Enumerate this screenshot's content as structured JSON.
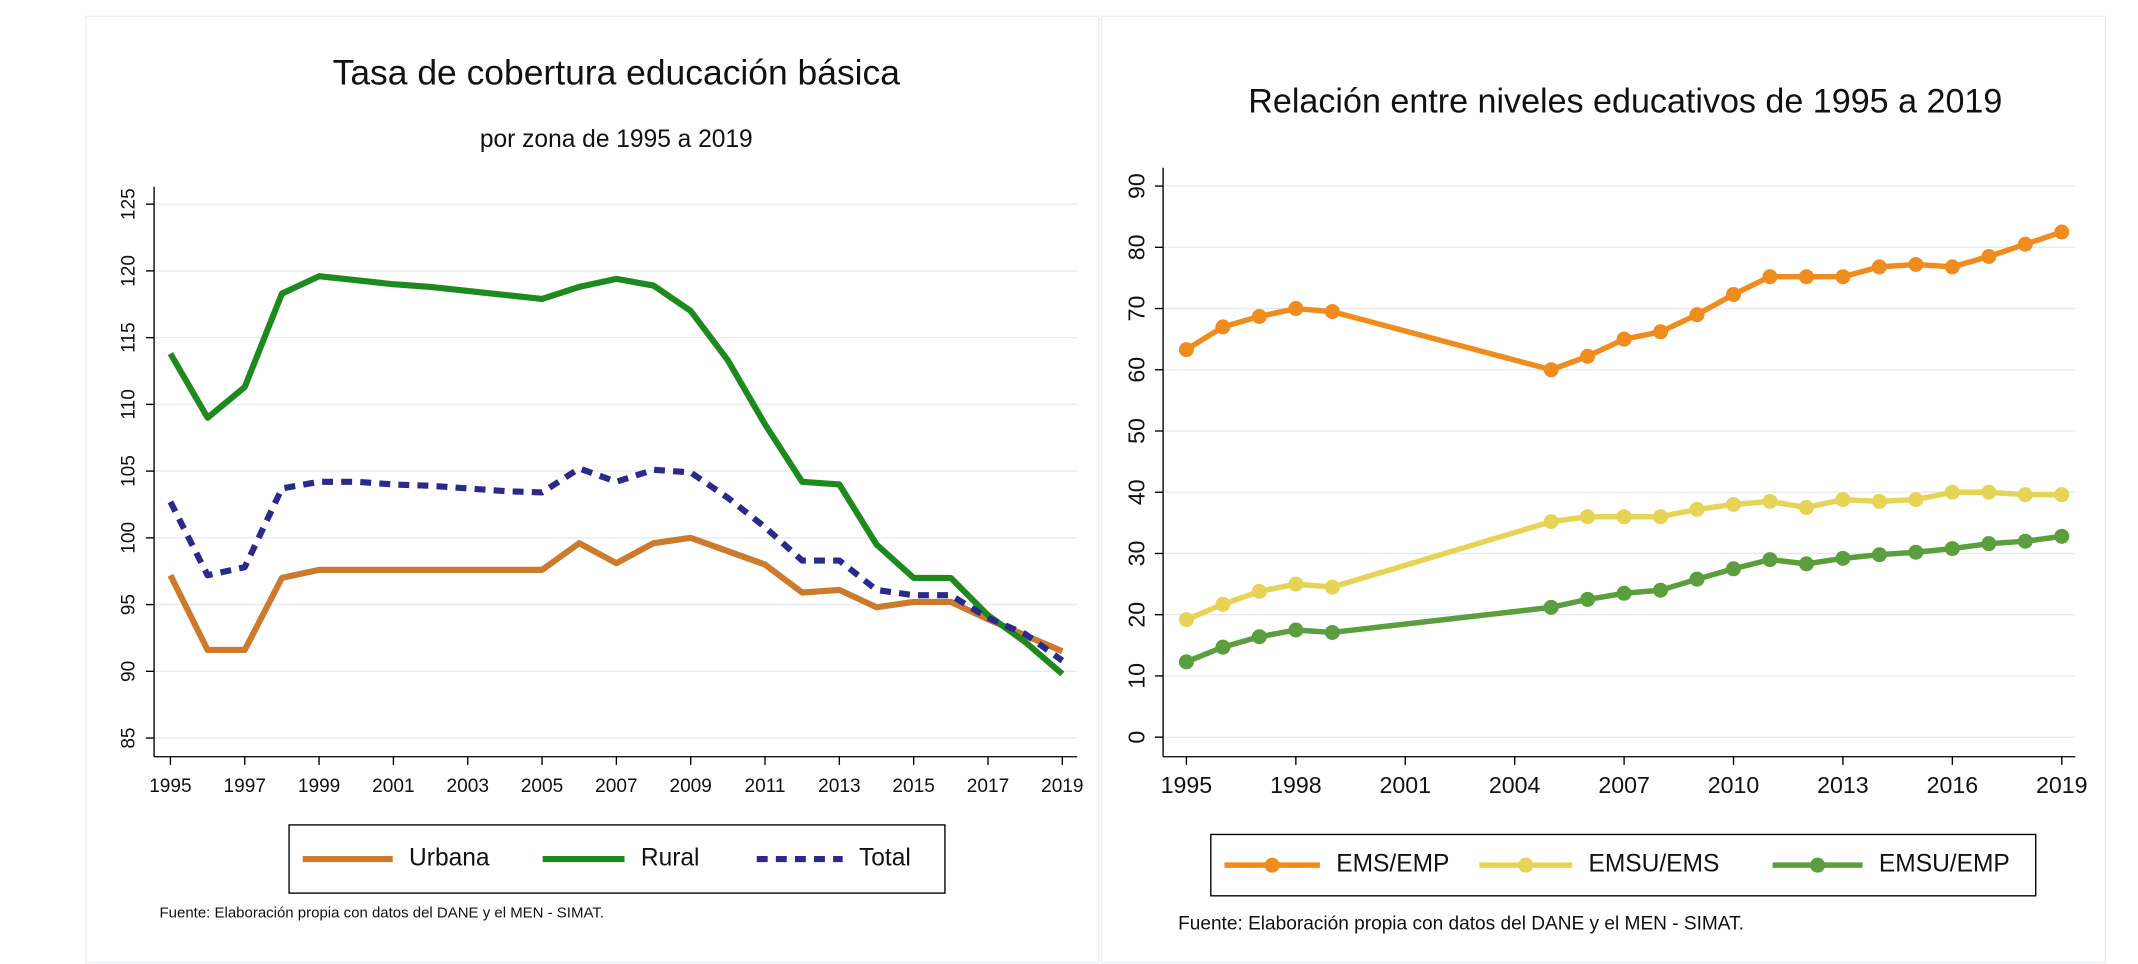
{
  "chart_data": [
    {
      "type": "line",
      "title": "Tasa de cobertura educación básica",
      "subtitle": "por zona de 1995 a 2019",
      "note": "Fuente: Elaboración propia con datos del DANE y el MEN - SIMAT.",
      "x": [
        1995,
        1996,
        1997,
        1998,
        1999,
        2000,
        2001,
        2002,
        2003,
        2004,
        2005,
        2006,
        2007,
        2008,
        2009,
        2010,
        2011,
        2012,
        2013,
        2014,
        2015,
        2016,
        2017,
        2018,
        2019
      ],
      "series": [
        {
          "name": "Urbana",
          "color": "#cc7a2c",
          "style": "solid",
          "values": [
            97.2,
            91.6,
            91.6,
            97,
            97.6,
            97.6,
            97.6,
            97.6,
            97.6,
            97.6,
            97.6,
            99.6,
            98.1,
            99.6,
            100,
            99,
            98,
            95.9,
            96.1,
            94.8,
            95.2,
            95.2,
            93.9,
            92.7,
            91.5
          ]
        },
        {
          "name": "Rural",
          "color": "#1e8a1e",
          "style": "solid",
          "values": [
            113.8,
            109,
            111.3,
            118.3,
            119.6,
            119.3,
            119,
            118.8,
            118.5,
            118.2,
            117.9,
            118.8,
            119.4,
            118.9,
            117,
            113.3,
            108.5,
            104.2,
            104,
            99.5,
            97,
            97,
            94.2,
            92.2,
            89.8
          ]
        },
        {
          "name": "Total",
          "color": "#2a2a8c",
          "style": "dashed",
          "values": [
            102.7,
            97.2,
            97.8,
            103.7,
            104.2,
            104.2,
            104,
            103.9,
            103.7,
            103.5,
            103.4,
            105.2,
            104.2,
            105.1,
            104.9,
            103,
            100.8,
            98.3,
            98.3,
            96.1,
            95.7,
            95.7,
            94,
            92.8,
            90.8
          ]
        }
      ],
      "xlim": [
        1994.56,
        2019.4
      ],
      "xticks": [
        1995,
        1997,
        1999,
        2001,
        2003,
        2005,
        2007,
        2009,
        2011,
        2013,
        2015,
        2017,
        2019
      ],
      "ylim": [
        83.6,
        126.3
      ],
      "yticks": [
        85,
        90,
        95,
        100,
        105,
        110,
        115,
        120,
        125
      ],
      "grid": true,
      "markers": false
    },
    {
      "type": "line",
      "title": "Relación entre niveles educativos de 1995 a 2019",
      "note": "Fuente: Elaboración propia con datos del DANE y el MEN - SIMAT.",
      "x": [
        1995,
        1996,
        1997,
        1998,
        1999,
        2005,
        2006,
        2007,
        2008,
        2009,
        2010,
        2011,
        2012,
        2013,
        2014,
        2015,
        2016,
        2017,
        2018,
        2019
      ],
      "series": [
        {
          "name": "EMS/EMP",
          "color": "#f08c1e",
          "style": "solid",
          "values": [
            63.3,
            67,
            68.7,
            70,
            69.5,
            60,
            62.2,
            65,
            66.2,
            69,
            72.3,
            75.2,
            75.2,
            75.2,
            76.8,
            77.2,
            76.8,
            78.5,
            80.5,
            82.5
          ]
        },
        {
          "name": "EMSU/EMS",
          "color": "#e6d457",
          "style": "solid",
          "values": [
            19.2,
            21.7,
            23.8,
            25,
            24.5,
            35.2,
            36,
            36,
            36,
            37.2,
            38,
            38.5,
            37.5,
            38.8,
            38.5,
            38.8,
            40,
            40,
            39.6,
            39.6
          ]
        },
        {
          "name": "EMSU/EMP",
          "color": "#5a9e3e",
          "style": "solid",
          "values": [
            12.3,
            14.7,
            16.4,
            17.5,
            17.1,
            21.2,
            22.5,
            23.5,
            24,
            25.8,
            27.5,
            29,
            28.3,
            29.2,
            29.8,
            30.2,
            30.8,
            31.6,
            32,
            32.8
          ]
        }
      ],
      "xlim": [
        1994.36,
        2019.37
      ],
      "xticks": [
        1995,
        1998,
        2001,
        2004,
        2007,
        2010,
        2013,
        2016,
        2019
      ],
      "ylim": [
        -3.2,
        93
      ],
      "yticks": [
        0,
        10,
        20,
        30,
        40,
        50,
        60,
        70,
        80,
        90
      ],
      "grid": true,
      "markers": true
    }
  ]
}
